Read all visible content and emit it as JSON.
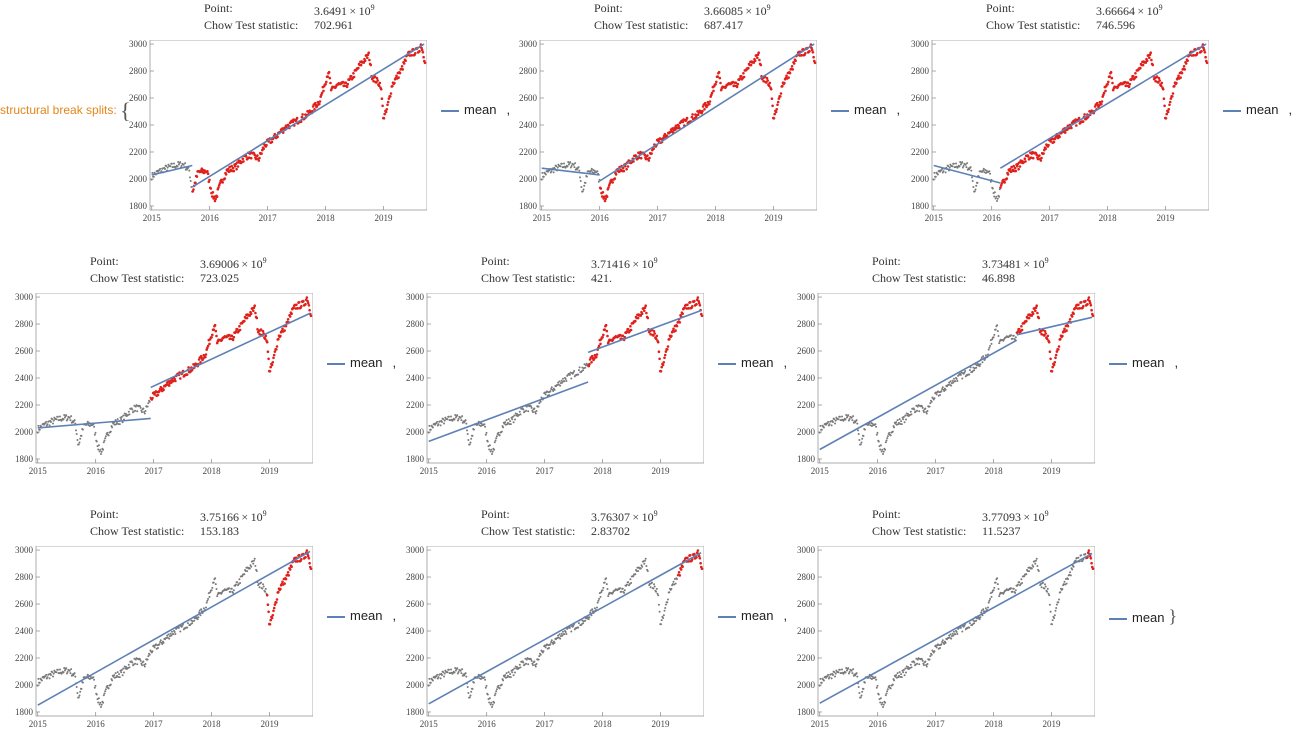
{
  "header": {
    "label": "structural break splits:",
    "open_brace": "{",
    "close_brace": "}"
  },
  "labels": {
    "point": "Point:",
    "chow": "Chow Test statistic:",
    "legend": "mean",
    "separator": ","
  },
  "colors": {
    "gray": "#7a7a7a",
    "red": "#e0201b",
    "line": "#5e81b5"
  },
  "chart_data": [
    {
      "type": "scatter",
      "point_mantissa": "3.6491",
      "point_exp": "9",
      "chow": "702.961",
      "break_year": 2015.7,
      "fit_left": [
        [
          2015.0,
          2030
        ],
        [
          2015.7,
          2100
        ]
      ],
      "fit_right": [
        [
          2015.7,
          1940
        ],
        [
          2019.7,
          3000
        ]
      ]
    },
    {
      "type": "scatter",
      "point_mantissa": "3.66085",
      "point_exp": "9",
      "chow": "687.417",
      "break_year": 2016.0,
      "fit_left": [
        [
          2015.0,
          2080
        ],
        [
          2016.0,
          2030
        ]
      ],
      "fit_right": [
        [
          2016.0,
          1985
        ],
        [
          2019.7,
          3000
        ]
      ]
    },
    {
      "type": "scatter",
      "point_mantissa": "3.66664",
      "point_exp": "9",
      "chow": "746.596",
      "break_year": 2016.15,
      "fit_left": [
        [
          2015.0,
          2100
        ],
        [
          2016.15,
          1970
        ]
      ],
      "fit_right": [
        [
          2016.15,
          2080
        ],
        [
          2019.7,
          3000
        ]
      ]
    },
    {
      "type": "scatter",
      "point_mantissa": "3.69006",
      "point_exp": "9",
      "chow": "723.025",
      "break_year": 2016.95,
      "fit_left": [
        [
          2015.0,
          2030
        ],
        [
          2016.95,
          2100
        ]
      ],
      "fit_right": [
        [
          2016.95,
          2330
        ],
        [
          2019.7,
          2880
        ]
      ]
    },
    {
      "type": "scatter",
      "point_mantissa": "3.71416",
      "point_exp": "9",
      "chow": "421.",
      "break_year": 2017.75,
      "fit_left": [
        [
          2015.0,
          1930
        ],
        [
          2017.75,
          2370
        ]
      ],
      "fit_right": [
        [
          2017.75,
          2590
        ],
        [
          2019.7,
          2900
        ]
      ]
    },
    {
      "type": "scatter",
      "point_mantissa": "3.73481",
      "point_exp": "9",
      "chow": "46.898",
      "break_year": 2018.4,
      "fit_left": [
        [
          2015.0,
          1870
        ],
        [
          2018.4,
          2680
        ]
      ],
      "fit_right": [
        [
          2018.4,
          2720
        ],
        [
          2019.7,
          2850
        ]
      ]
    },
    {
      "type": "scatter",
      "point_mantissa": "3.75166",
      "point_exp": "9",
      "chow": "153.183",
      "break_year": 2018.95,
      "fit_left": [
        [
          2015.0,
          1850
        ],
        [
          2019.7,
          2990
        ]
      ],
      "fit_right": []
    },
    {
      "type": "scatter",
      "point_mantissa": "3.76307",
      "point_exp": "9",
      "chow": "2.83702",
      "break_year": 2019.3,
      "fit_left": [
        [
          2015.0,
          1860
        ],
        [
          2019.7,
          2980
        ]
      ],
      "fit_right": []
    },
    {
      "type": "scatter",
      "point_mantissa": "3.77093",
      "point_exp": "9",
      "chow": "11.5237",
      "break_year": 2019.6,
      "fit_left": [
        [
          2015.0,
          1865
        ],
        [
          2019.7,
          2975
        ]
      ],
      "fit_right": []
    }
  ],
  "axes": {
    "x_ticks": [
      "2015",
      "2016",
      "2017",
      "2018",
      "2019"
    ],
    "x_values": [
      2015,
      2016,
      2017,
      2018,
      2019
    ],
    "y_ticks": [
      "1800",
      "2000",
      "2200",
      "2400",
      "2600",
      "2800",
      "3000"
    ],
    "y_values": [
      1800,
      2000,
      2200,
      2400,
      2600,
      2800,
      3000
    ],
    "xlim": [
      2014.97,
      2019.75
    ],
    "ylim": [
      1770,
      3030
    ]
  },
  "series_anchors": [
    [
      2015.0,
      2020
    ],
    [
      2015.1,
      2050
    ],
    [
      2015.25,
      2080
    ],
    [
      2015.4,
      2100
    ],
    [
      2015.55,
      2110
    ],
    [
      2015.65,
      2060
    ],
    [
      2015.7,
      1900
    ],
    [
      2015.8,
      2050
    ],
    [
      2015.95,
      2060
    ],
    [
      2016.05,
      1880
    ],
    [
      2016.1,
      1850
    ],
    [
      2016.2,
      1980
    ],
    [
      2016.3,
      2060
    ],
    [
      2016.45,
      2090
    ],
    [
      2016.6,
      2160
    ],
    [
      2016.7,
      2180
    ],
    [
      2016.85,
      2150
    ],
    [
      2016.95,
      2250
    ],
    [
      2017.1,
      2300
    ],
    [
      2017.3,
      2380
    ],
    [
      2017.5,
      2430
    ],
    [
      2017.7,
      2480
    ],
    [
      2017.9,
      2580
    ],
    [
      2018.05,
      2800
    ],
    [
      2018.1,
      2650
    ],
    [
      2018.2,
      2700
    ],
    [
      2018.35,
      2690
    ],
    [
      2018.5,
      2780
    ],
    [
      2018.6,
      2850
    ],
    [
      2018.75,
      2920
    ],
    [
      2018.8,
      2760
    ],
    [
      2018.95,
      2700
    ],
    [
      2019.0,
      2450
    ],
    [
      2019.05,
      2500
    ],
    [
      2019.15,
      2700
    ],
    [
      2019.3,
      2800
    ],
    [
      2019.4,
      2900
    ],
    [
      2019.45,
      2930
    ],
    [
      2019.6,
      2950
    ],
    [
      2019.65,
      3000
    ],
    [
      2019.7,
      2900
    ],
    [
      2019.72,
      2880
    ]
  ]
}
